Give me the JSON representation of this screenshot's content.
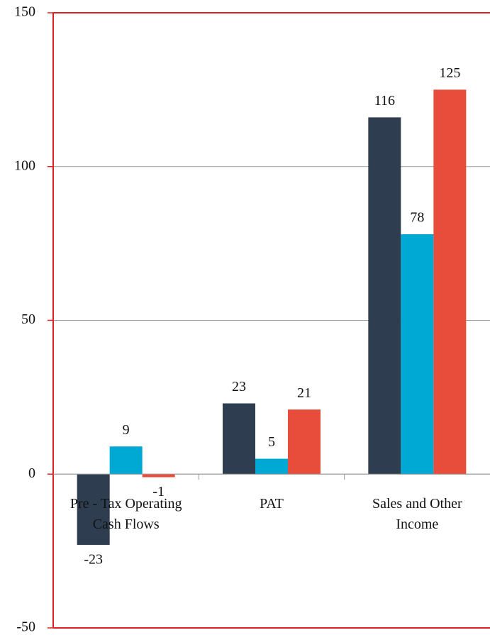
{
  "chart_data": {
    "type": "bar",
    "categories": [
      "Pre - Tax Operating Cash Flows",
      "PAT",
      "Sales and Other Income"
    ],
    "series": [
      {
        "color": "#2e3e50",
        "values": [
          -23,
          23,
          116
        ]
      },
      {
        "color": "#00a9d4",
        "values": [
          9,
          5,
          78
        ]
      },
      {
        "color": "#e84c3a",
        "values": [
          -1,
          21,
          125
        ]
      }
    ],
    "ylim": [
      -50,
      150
    ],
    "yticks": [
      -50,
      0,
      50,
      100,
      150
    ],
    "grid": true
  }
}
